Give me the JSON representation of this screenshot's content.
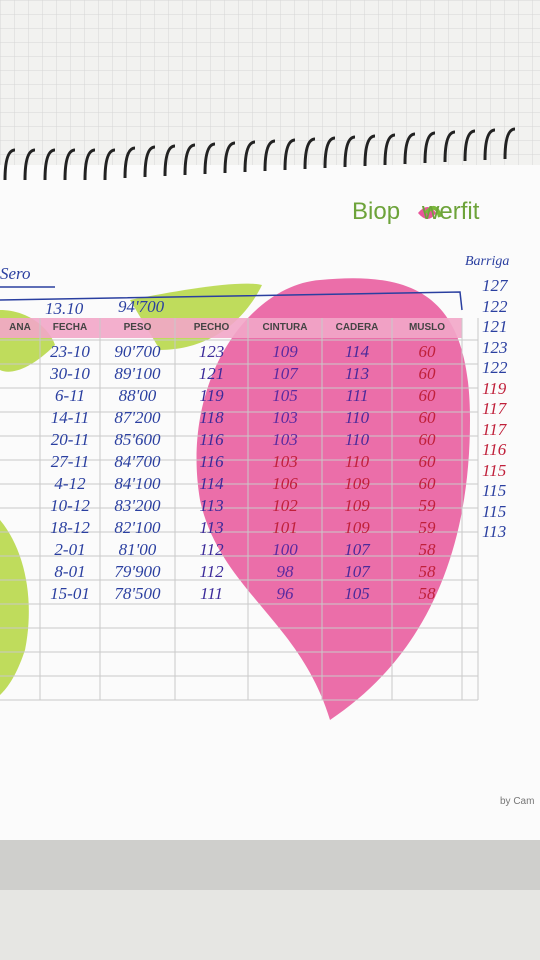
{
  "brand": {
    "left": "Biop",
    "right": "werfit"
  },
  "notes": {
    "top_left": "Sero",
    "right_header": "Barriga",
    "start_date": "13.10",
    "start_weight": "94'700",
    "footer": "by Cam"
  },
  "table": {
    "headers": [
      "ANA",
      "FECHA",
      "PESO",
      "PECHO",
      "CINTURA",
      "CADERA",
      "MUSLO"
    ],
    "rows": [
      [
        "23-10",
        "90'700",
        "123",
        "109",
        "114",
        "60"
      ],
      [
        "30-10",
        "89'100",
        "121",
        "107",
        "113",
        "60"
      ],
      [
        "6-11",
        "88'00",
        "119",
        "105",
        "111",
        "60"
      ],
      [
        "14-11",
        "87'200",
        "118",
        "103",
        "110",
        "60"
      ],
      [
        "20-11",
        "85'600",
        "116",
        "103",
        "110",
        "60"
      ],
      [
        "27-11",
        "84'700",
        "116",
        "103",
        "110",
        "60"
      ],
      [
        "4-12",
        "84'100",
        "114",
        "106",
        "109",
        "60"
      ],
      [
        "10-12",
        "83'200",
        "113",
        "102",
        "109",
        "59"
      ],
      [
        "18-12",
        "82'100",
        "113",
        "101",
        "109",
        "59"
      ],
      [
        "2-01",
        "81'00",
        "112",
        "100",
        "107",
        "58"
      ],
      [
        "8-01",
        "79'900",
        "112",
        "98",
        "107",
        "58"
      ],
      [
        "15-01",
        "78'500",
        "111",
        "96",
        "105",
        "58"
      ]
    ]
  },
  "barriga": [
    "127",
    "122",
    "121",
    "123",
    "122",
    "119",
    "117",
    "117",
    "116",
    "115",
    "115",
    "115",
    "113"
  ]
}
